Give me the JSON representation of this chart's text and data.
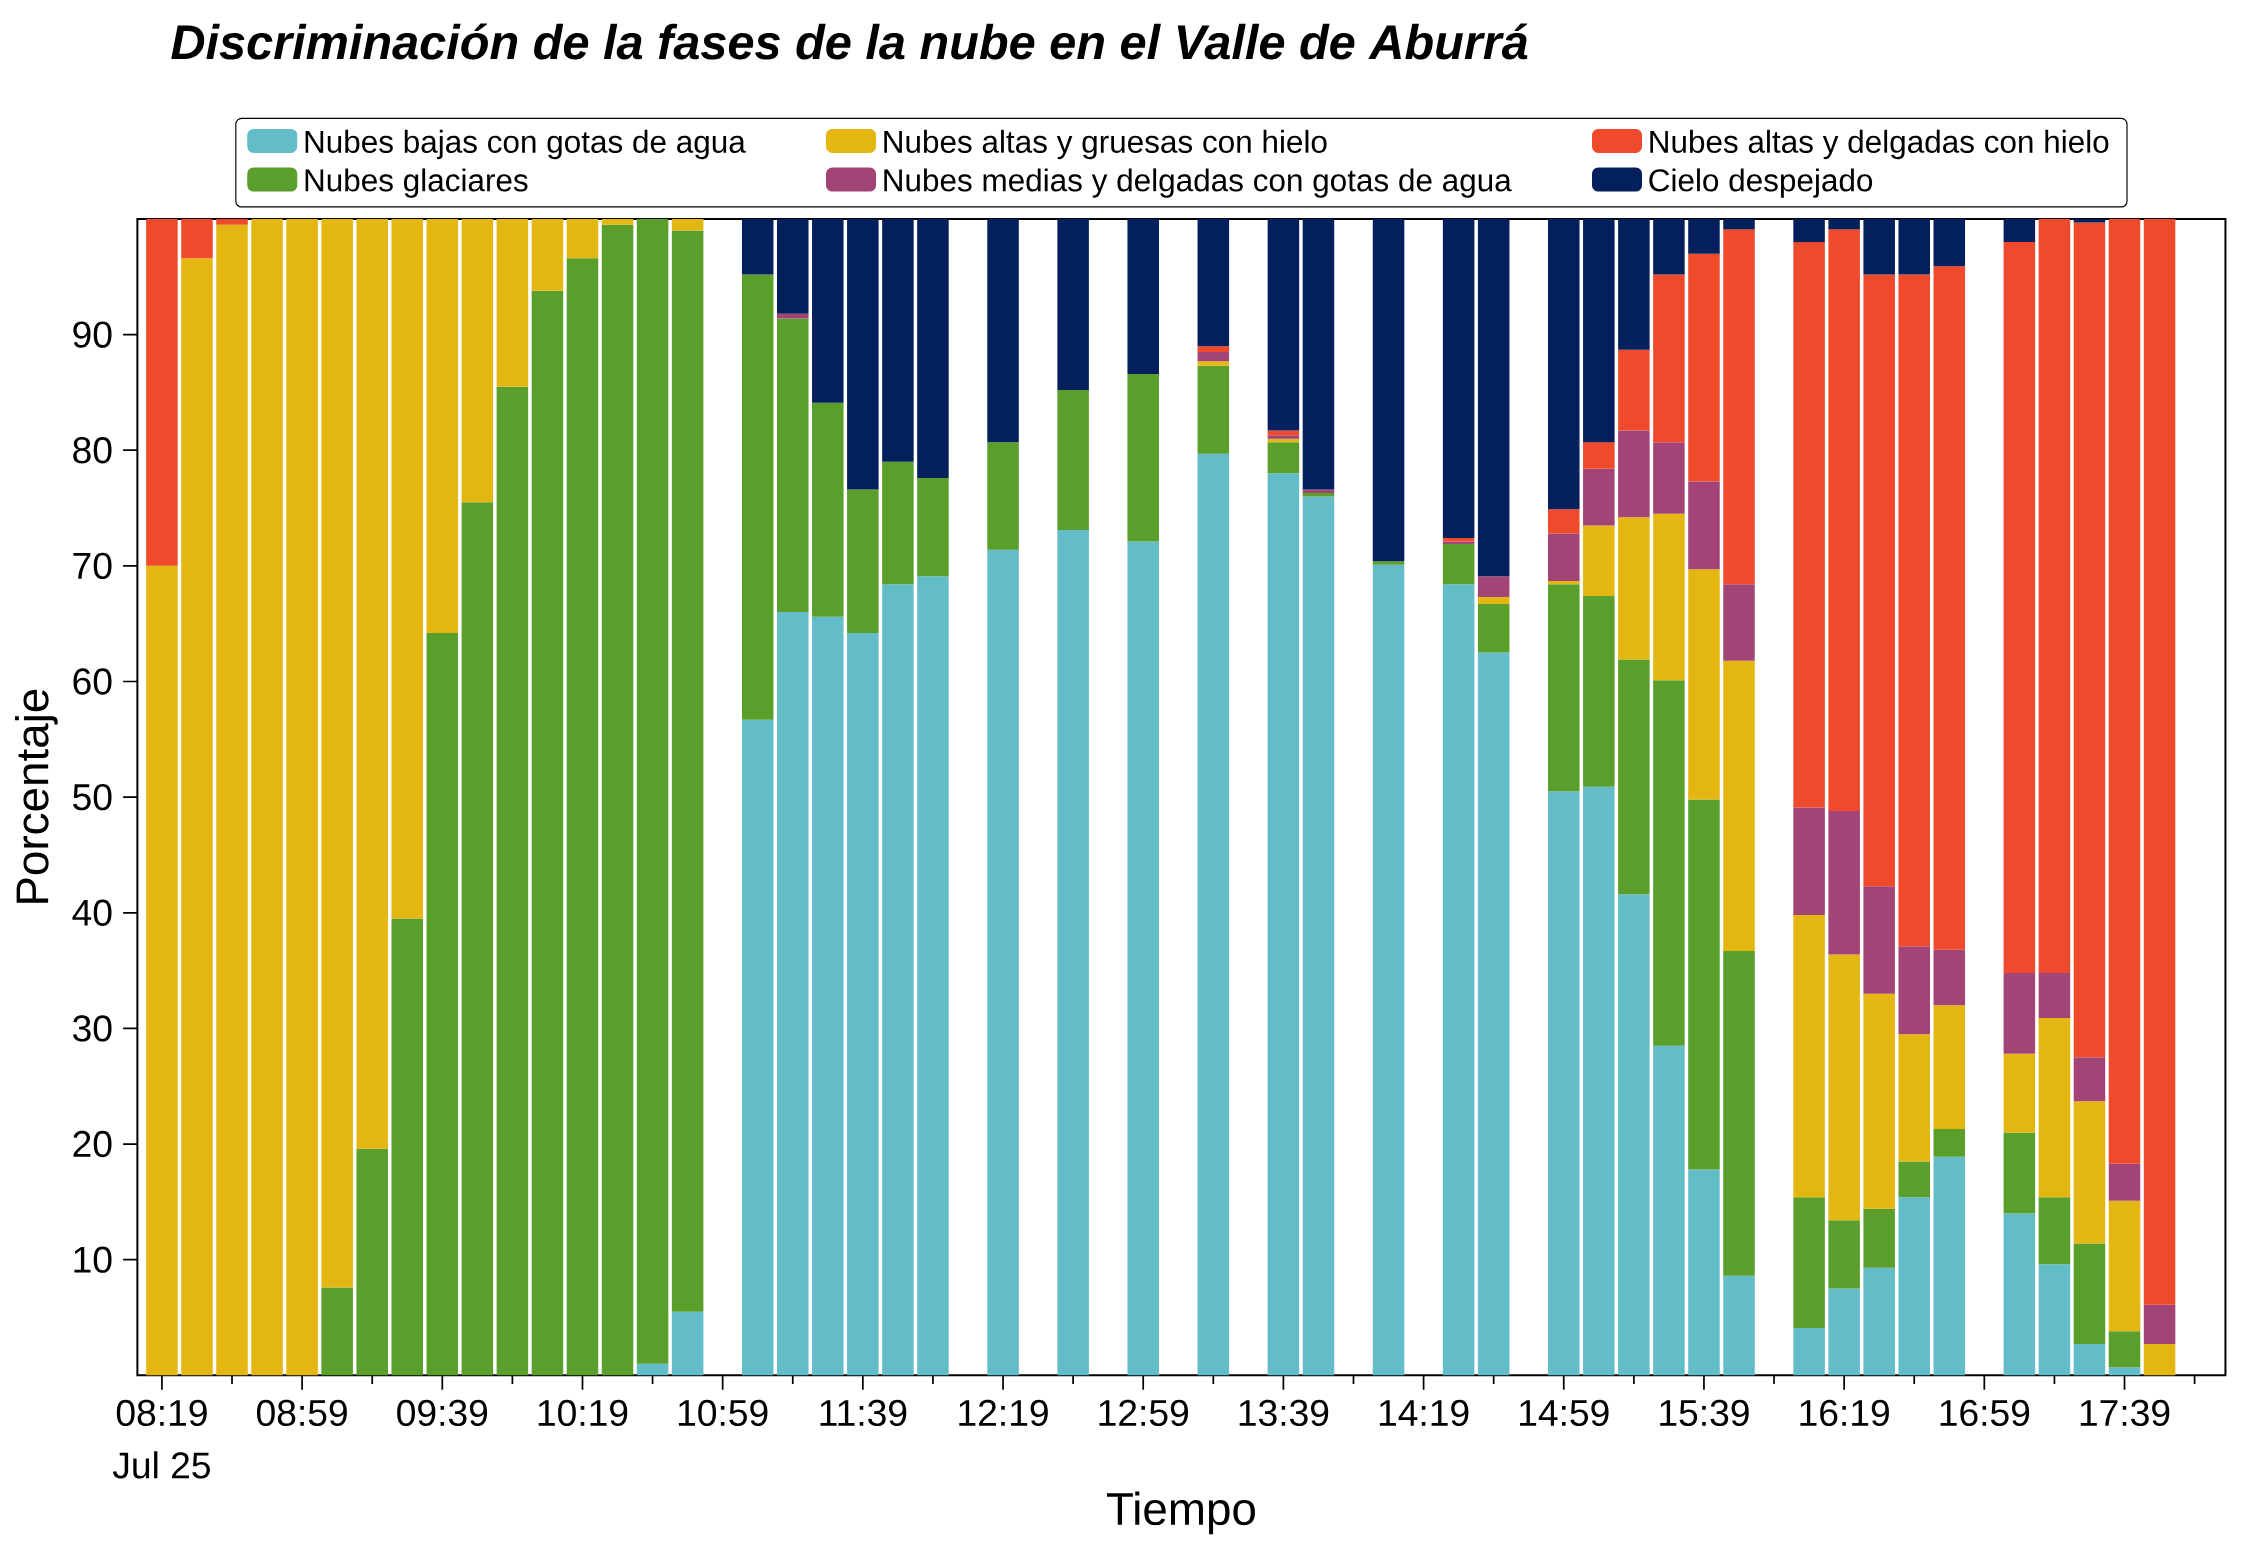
{
  "chart_data": {
    "type": "bar",
    "stacked": true,
    "title": "Discriminación de la fases de la nube en el Valle de Aburrá",
    "xlabel": "Tiempo",
    "ylabel": "Porcentaje",
    "annotations": [
      "Jul 25"
    ],
    "legend": "top",
    "xlim": [
      8.2,
      18.13
    ],
    "ylim": [
      0,
      100
    ],
    "xticks": [
      {
        "value": 8.3167,
        "label": "08:19"
      },
      {
        "value": 8.65,
        "label": null
      },
      {
        "value": 8.9833,
        "label": "08:59"
      },
      {
        "value": 9.3167,
        "label": null
      },
      {
        "value": 9.65,
        "label": "09:39"
      },
      {
        "value": 9.9833,
        "label": null
      },
      {
        "value": 10.3167,
        "label": "10:19"
      },
      {
        "value": 10.65,
        "label": null
      },
      {
        "value": 10.9833,
        "label": "10:59"
      },
      {
        "value": 11.3167,
        "label": null
      },
      {
        "value": 11.65,
        "label": "11:39"
      },
      {
        "value": 11.9833,
        "label": null
      },
      {
        "value": 12.3167,
        "label": "12:19"
      },
      {
        "value": 12.65,
        "label": null
      },
      {
        "value": 12.9833,
        "label": "12:59"
      },
      {
        "value": 13.3167,
        "label": null
      },
      {
        "value": 13.65,
        "label": "13:39"
      },
      {
        "value": 13.9833,
        "label": null
      },
      {
        "value": 14.3167,
        "label": "14:19"
      },
      {
        "value": 14.65,
        "label": null
      },
      {
        "value": 14.9833,
        "label": "14:59"
      },
      {
        "value": 15.3167,
        "label": null
      },
      {
        "value": 15.65,
        "label": "15:39"
      },
      {
        "value": 15.9833,
        "label": null
      },
      {
        "value": 16.3167,
        "label": "16:19"
      },
      {
        "value": 16.65,
        "label": null
      },
      {
        "value": 16.9833,
        "label": "16:59"
      },
      {
        "value": 17.3167,
        "label": null
      },
      {
        "value": 17.65,
        "label": "17:39"
      },
      {
        "value": 17.9833,
        "label": null
      }
    ],
    "yticks": [
      10,
      20,
      30,
      40,
      50,
      60,
      70,
      80,
      90
    ],
    "x": [
      8.3167,
      8.4833,
      8.65,
      8.8167,
      8.9833,
      9.15,
      9.3167,
      9.4833,
      9.65,
      9.8167,
      9.9833,
      10.15,
      10.3167,
      10.4833,
      10.65,
      10.8167,
      10.9833,
      11.15,
      11.3167,
      11.4833,
      11.65,
      11.8167,
      11.9833,
      12.15,
      12.3167,
      12.4833,
      12.65,
      12.8167,
      12.9833,
      13.15,
      13.3167,
      13.4833,
      13.65,
      13.8167,
      13.9833,
      14.15,
      14.3167,
      14.4833,
      14.65,
      14.8167,
      14.9833,
      15.15,
      15.3167,
      15.4833,
      15.65,
      15.8167,
      15.9833,
      16.15,
      16.3167,
      16.4833,
      16.65,
      16.8167,
      16.9833,
      17.15,
      17.3167,
      17.4833,
      17.65,
      17.8167
    ],
    "series": [
      {
        "name": "Nubes bajas con gotas de agua",
        "color": "#63bdc8",
        "values": [
          0,
          0,
          0,
          0,
          0,
          0,
          0,
          0,
          0,
          0,
          0,
          0,
          0,
          0,
          1,
          5.5,
          null,
          56.7,
          66,
          65.6,
          64.2,
          68.4,
          69.1,
          null,
          71.4,
          null,
          73.1,
          null,
          72.1,
          null,
          79.7,
          null,
          78,
          76,
          null,
          70.1,
          null,
          68.4,
          62.5,
          null,
          50.5,
          50.9,
          41.6,
          28.5,
          17.8,
          8.6,
          null,
          4.1,
          7.5,
          9.3,
          15.4,
          18.9,
          null,
          14,
          9.6,
          2.7,
          0.7,
          0
        ]
      },
      {
        "name": "Nubes glaciares",
        "color": "#5a9e2b",
        "values": [
          0,
          0,
          0,
          0,
          0,
          7.6,
          19.6,
          39.5,
          64.2,
          75.5,
          85.5,
          93.8,
          96.6,
          99.5,
          99,
          93.5,
          null,
          38.5,
          25.4,
          18.5,
          12.4,
          10.6,
          8.5,
          null,
          9.3,
          null,
          12.1,
          null,
          14.5,
          null,
          7.6,
          null,
          2.7,
          0.3,
          null,
          0.3,
          null,
          3.5,
          4.2,
          null,
          17.9,
          16.5,
          20.3,
          31.6,
          32,
          28.1,
          null,
          11.3,
          5.9,
          5.1,
          3.1,
          2.4,
          null,
          7,
          5.8,
          8.7,
          3.1,
          0
        ]
      },
      {
        "name": "Nubes altas y gruesas con hielo",
        "color": "#e3b612",
        "values": [
          70,
          96.6,
          99.5,
          100,
          100,
          92.4,
          80.4,
          60.5,
          35.8,
          24.5,
          14.5,
          6.2,
          3.4,
          0.5,
          0,
          1,
          null,
          0,
          0,
          0,
          0,
          0,
          0,
          null,
          0,
          null,
          0,
          null,
          0,
          null,
          0.4,
          null,
          0.3,
          0,
          null,
          0,
          null,
          0,
          0.6,
          null,
          0.3,
          6.1,
          12.3,
          14.4,
          19.9,
          25.1,
          null,
          24.4,
          23,
          18.6,
          11,
          10.7,
          null,
          6.8,
          15.5,
          12.3,
          11.3,
          2.7
        ]
      },
      {
        "name": "Nubes medias y delgadas con gotas de agua",
        "color": "#a34477",
        "values": [
          0,
          0,
          0,
          0,
          0,
          0,
          0,
          0,
          0,
          0,
          0,
          0,
          0,
          0,
          0,
          0,
          null,
          0,
          0.4,
          0,
          0,
          0,
          0,
          null,
          0,
          null,
          0,
          null,
          0,
          null,
          0.8,
          null,
          0.3,
          0.3,
          null,
          0,
          null,
          0.2,
          1.8,
          null,
          4.1,
          4.9,
          7.5,
          6.2,
          7.6,
          6.6,
          null,
          9.3,
          12.4,
          9.3,
          7.6,
          4.8,
          null,
          7,
          3.9,
          3.8,
          3.2,
          3.4
        ]
      },
      {
        "name": "Nubes altas y delgadas con hielo",
        "color": "#ee4a2b",
        "values": [
          30,
          3.4,
          0.5,
          0,
          0,
          0,
          0,
          0,
          0,
          0,
          0,
          0,
          0,
          0,
          0,
          0,
          null,
          0,
          0,
          0,
          0,
          0,
          0,
          null,
          0,
          null,
          0,
          null,
          0,
          null,
          0.5,
          null,
          0.4,
          0,
          null,
          0,
          null,
          0.3,
          0,
          null,
          2.1,
          2.3,
          7,
          14.5,
          19.7,
          30.7,
          null,
          48.9,
          50.3,
          52.9,
          58.1,
          59.1,
          null,
          63.2,
          65.2,
          72.2,
          81.7,
          93.9
        ]
      },
      {
        "name": "Cielo despejado",
        "color": "#031f5c",
        "values": [
          0,
          0,
          0,
          0,
          0,
          0,
          0,
          0,
          0,
          0,
          0,
          0,
          0,
          0,
          0,
          0,
          null,
          4.8,
          8.2,
          15.9,
          23.4,
          21,
          22.4,
          null,
          19.3,
          null,
          14.8,
          null,
          13.4,
          null,
          11,
          null,
          18.3,
          23.4,
          null,
          29.6,
          null,
          27.6,
          30.9,
          null,
          25.1,
          19.3,
          11.3,
          4.8,
          3,
          0.9,
          null,
          2,
          0.9,
          4.8,
          4.8,
          4.1,
          null,
          2,
          0,
          0.3,
          0,
          0
        ]
      }
    ]
  }
}
